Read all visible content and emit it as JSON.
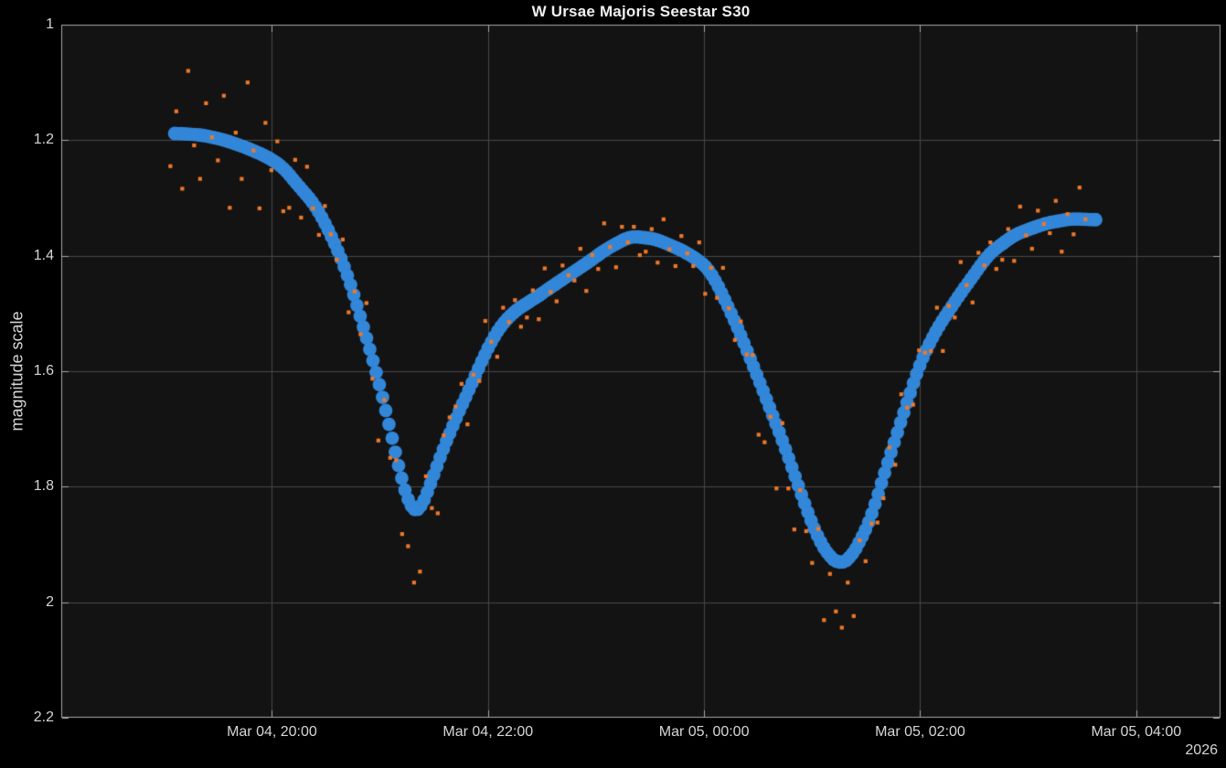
{
  "figure": {
    "title": "W Ursae Majoris Seestar S30",
    "year_label": "2026"
  },
  "chart_data": {
    "type": "scatter",
    "title": "W Ursae Majoris Seestar S30",
    "xlabel": "",
    "ylabel": "magnitude scale",
    "grid": true,
    "legend": false,
    "background_color": "#131313",
    "outer_background_color": "#000000",
    "grid_color": "#474747",
    "axis_color": "#a8a8a8",
    "text_color": "#d6d6d6",
    "x_axis": {
      "unit": "hours since Mar 04 00:00, 2026",
      "lim": [
        18.05,
        28.78
      ],
      "ticks": [
        20,
        22,
        24,
        26,
        28
      ],
      "tick_labels": [
        "Mar 04, 20:00",
        "Mar 04, 22:00",
        "Mar 05, 00:00",
        "Mar 05, 02:00",
        "Mar 05, 04:00"
      ],
      "year_label": "2026"
    },
    "y_axis": {
      "lim": [
        1,
        2.2
      ],
      "reversed": true,
      "ticks": [
        1,
        1.2,
        1.4,
        1.6,
        1.8,
        2,
        2.2
      ],
      "tick_labels": [
        "1",
        "1.2",
        "1.4",
        "1.6",
        "1.8",
        "2",
        "2.2"
      ]
    },
    "series": [
      {
        "name": "smoothed_light_curve",
        "type": "line_of_markers",
        "marker": "circle",
        "color": "#3287d9",
        "x": [
          19.1,
          19.35,
          19.55,
          19.75,
          19.95,
          20.1,
          20.25,
          20.4,
          20.55,
          20.7,
          20.85,
          21.0,
          21.1,
          21.2,
          21.29,
          21.36,
          21.45,
          21.55,
          21.65,
          21.75,
          21.85,
          21.95,
          22.1,
          22.25,
          22.4,
          22.65,
          22.93,
          23.1,
          23.32,
          23.55,
          23.8,
          23.95,
          24.05,
          24.17,
          24.3,
          24.45,
          24.59,
          24.74,
          24.87,
          24.96,
          25.05,
          25.15,
          25.26,
          25.35,
          25.45,
          25.55,
          25.65,
          25.75,
          25.86,
          26.0,
          26.15,
          26.36,
          26.64,
          26.88,
          27.16,
          27.4,
          27.65
        ],
        "y": [
          1.188,
          1.191,
          1.199,
          1.212,
          1.228,
          1.246,
          1.28,
          1.312,
          1.365,
          1.432,
          1.525,
          1.625,
          1.705,
          1.788,
          1.843,
          1.847,
          1.805,
          1.752,
          1.705,
          1.662,
          1.622,
          1.578,
          1.525,
          1.495,
          1.478,
          1.446,
          1.411,
          1.388,
          1.366,
          1.371,
          1.391,
          1.408,
          1.424,
          1.467,
          1.52,
          1.588,
          1.655,
          1.727,
          1.797,
          1.845,
          1.887,
          1.92,
          1.935,
          1.925,
          1.893,
          1.852,
          1.788,
          1.729,
          1.665,
          1.585,
          1.528,
          1.469,
          1.396,
          1.363,
          1.344,
          1.336,
          1.338
        ]
      },
      {
        "name": "raw_measurements",
        "type": "scatter",
        "marker": "square",
        "color": "#f0782a",
        "x": [
          19.06,
          19.115,
          19.17,
          19.225,
          19.28,
          19.335,
          19.39,
          19.445,
          19.5,
          19.555,
          19.61,
          19.665,
          19.72,
          19.775,
          19.83,
          19.885,
          19.94,
          19.995,
          20.05,
          20.105,
          20.16,
          20.215,
          20.27,
          20.325,
          20.38,
          20.435,
          20.49,
          20.545,
          20.6,
          20.655,
          20.71,
          20.765,
          20.82,
          20.875,
          20.93,
          20.985,
          21.04,
          21.095,
          21.15,
          21.205,
          21.26,
          21.315,
          21.37,
          21.425,
          21.48,
          21.535,
          21.59,
          21.645,
          21.7,
          21.755,
          21.81,
          21.865,
          21.92,
          21.975,
          22.03,
          22.085,
          22.14,
          22.195,
          22.25,
          22.305,
          22.36,
          22.415,
          22.47,
          22.525,
          22.58,
          22.635,
          22.69,
          22.745,
          22.8,
          22.855,
          22.91,
          22.965,
          23.02,
          23.075,
          23.13,
          23.185,
          23.24,
          23.295,
          23.35,
          23.405,
          23.46,
          23.515,
          23.57,
          23.625,
          23.68,
          23.735,
          23.79,
          23.845,
          23.9,
          23.955,
          24.01,
          24.065,
          24.12,
          24.175,
          24.23,
          24.285,
          24.34,
          24.395,
          24.45,
          24.505,
          24.56,
          24.615,
          24.67,
          24.725,
          24.78,
          24.835,
          24.89,
          24.945,
          25.0,
          25.055,
          25.11,
          25.165,
          25.22,
          25.275,
          25.33,
          25.385,
          25.44,
          25.495,
          25.55,
          25.605,
          25.66,
          25.715,
          25.77,
          25.825,
          25.88,
          25.935,
          25.99,
          26.045,
          26.1,
          26.155,
          26.21,
          26.265,
          26.32,
          26.375,
          26.43,
          26.485,
          26.54,
          26.595,
          26.65,
          26.705,
          26.76,
          26.815,
          26.87,
          26.925,
          26.98,
          27.035,
          27.09,
          27.145,
          27.2,
          27.255,
          27.31,
          27.365,
          27.42,
          27.475,
          27.53
        ],
        "y": [
          1.245,
          1.15,
          1.284,
          1.08,
          1.209,
          1.267,
          1.136,
          1.195,
          1.235,
          1.123,
          1.317,
          1.187,
          1.267,
          1.1,
          1.218,
          1.318,
          1.17,
          1.252,
          1.202,
          1.323,
          1.317,
          1.234,
          1.334,
          1.246,
          1.318,
          1.364,
          1.314,
          1.363,
          1.407,
          1.372,
          1.498,
          1.462,
          1.536,
          1.482,
          1.613,
          1.72,
          1.65,
          1.75,
          1.754,
          1.882,
          1.903,
          1.966,
          1.947,
          1.782,
          1.837,
          1.846,
          1.711,
          1.68,
          1.661,
          1.622,
          1.692,
          1.606,
          1.617,
          1.513,
          1.549,
          1.575,
          1.49,
          1.515,
          1.477,
          1.523,
          1.507,
          1.46,
          1.51,
          1.422,
          1.463,
          1.479,
          1.417,
          1.434,
          1.443,
          1.388,
          1.461,
          1.399,
          1.423,
          1.344,
          1.385,
          1.42,
          1.35,
          1.377,
          1.35,
          1.399,
          1.393,
          1.354,
          1.412,
          1.337,
          1.389,
          1.418,
          1.366,
          1.396,
          1.418,
          1.377,
          1.466,
          1.421,
          1.473,
          1.421,
          1.491,
          1.546,
          1.514,
          1.571,
          1.572,
          1.71,
          1.723,
          1.679,
          1.803,
          1.69,
          1.803,
          1.874,
          1.806,
          1.877,
          1.932,
          1.873,
          2.031,
          1.951,
          2.016,
          2.044,
          1.966,
          2.024,
          1.893,
          1.929,
          1.864,
          1.862,
          1.82,
          1.732,
          1.762,
          1.64,
          1.663,
          1.658,
          1.564,
          1.568,
          1.565,
          1.49,
          1.565,
          1.487,
          1.507,
          1.411,
          1.451,
          1.481,
          1.395,
          1.417,
          1.377,
          1.423,
          1.407,
          1.354,
          1.409,
          1.315,
          1.365,
          1.388,
          1.322,
          1.345,
          1.361,
          1.305,
          1.393,
          1.328,
          1.363,
          1.282,
          1.337
        ]
      }
    ]
  }
}
